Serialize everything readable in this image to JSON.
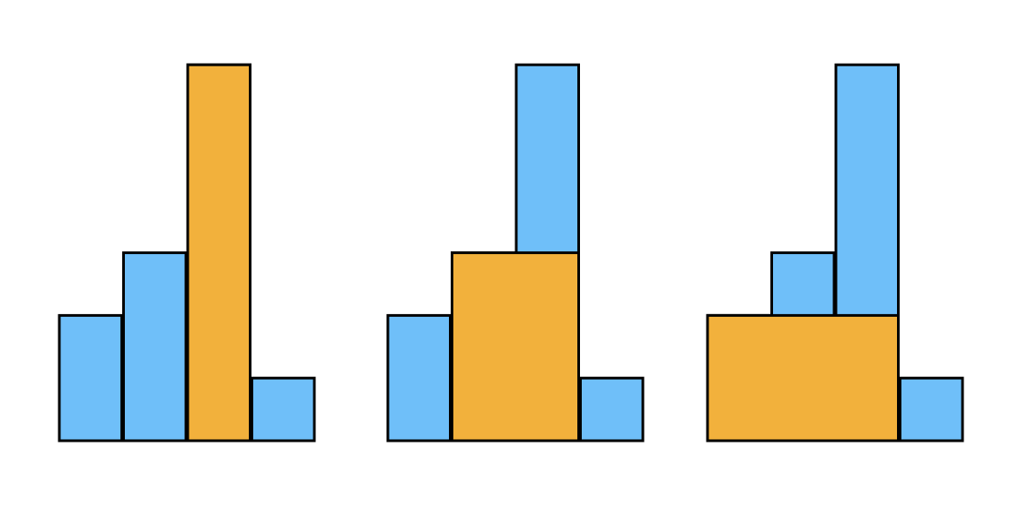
{
  "histogram": {
    "values": [
      2,
      3,
      6,
      1
    ],
    "color": "#6fbff9"
  },
  "highlight_color": "#f2b13c",
  "panels": [
    {
      "start": 2,
      "end": 2,
      "height": 6
    },
    {
      "start": 1,
      "end": 2,
      "height": 3
    },
    {
      "start": 0,
      "end": 2,
      "height": 2
    }
  ]
}
